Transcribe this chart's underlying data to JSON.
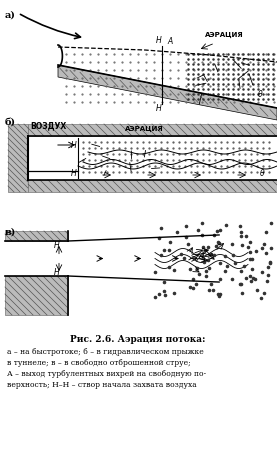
{
  "title": "Рис. 2.6. Аэрация потока:",
  "caption_lines": [
    "а – на быстротоке; б – в гидравлическом прыжке",
    "в туннеле; в – в свободно отброшенной струе;",
    "А – выход турбулентных вихрей на свободную по-",
    "верхность; Н–Н – створ начала захвата воздуха"
  ],
  "label_a": "а)",
  "label_b": "б)",
  "label_v": "в)",
  "text_aeracia": "АЭРАЦИЯ",
  "text_vozduh": "ВОЗДУХ",
  "bg_color": "#ffffff",
  "line_color": "#000000",
  "hatching_color": "#888888"
}
